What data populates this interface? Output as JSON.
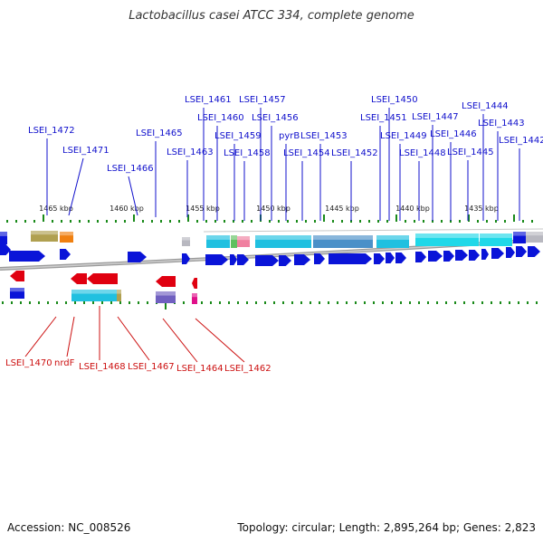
{
  "title": "Lactobacillus casei ATCC 334, complete genome",
  "footer": {
    "accession": "Accession: NC_008526",
    "topology": "Topology: circular; Length: 2,895,264 bp; Genes: 2,823"
  },
  "colors": {
    "forward_label": "#1010cc",
    "reverse_label": "#cc1010",
    "forward_gene": "#0a14d8",
    "reverse_gene": "#e00010",
    "feature_cyan": "#20c0e0",
    "feature_olive": "#b0a050",
    "feature_orange": "#f08010",
    "feature_gray": "#b8b8c0",
    "feature_purple": "#7060c0",
    "feature_pink": "#f080a0",
    "feature_magenta": "#e0108a",
    "tick": "#1a8a1a",
    "backbone": "#888888"
  },
  "scale_labels": [
    "1465 kbp",
    "1460 kbp",
    "1455 kbp",
    "1450 kbp",
    "1445 kbp",
    "1440 kbp",
    "1435 kbp"
  ],
  "forward_labels": [
    "LSEI_1472",
    "LSEI_1471",
    "LSEI_1466",
    "LSEI_1465",
    "LSEI_1463",
    "LSEI_1461",
    "LSEI_1460",
    "LSEI_1459",
    "LSEI_1458",
    "LSEI_1457",
    "LSEI_1456",
    "pyrB",
    "LSEI_1454",
    "LSEI_1453",
    "LSEI_1452",
    "LSEI_1450",
    "LSEI_1451",
    "LSEI_1449",
    "LSEI_1448",
    "LSEI_1447",
    "LSEI_1446",
    "LSEI_1445",
    "LSEI_1444",
    "LSEI_1443",
    "LSEI_1442"
  ],
  "reverse_labels": [
    "LSEI_1470",
    "nrdF",
    "LSEI_1468",
    "LSEI_1467",
    "LSEI_1464",
    "LSEI_1462"
  ]
}
